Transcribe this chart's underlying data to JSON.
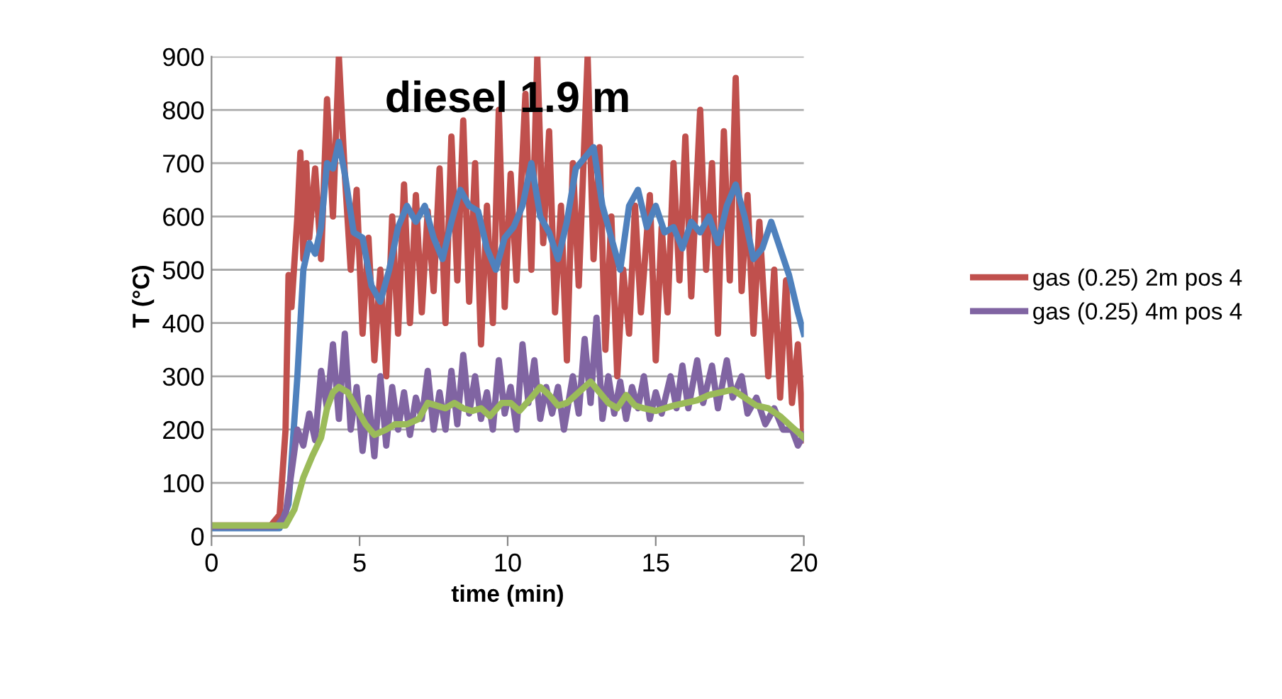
{
  "chart_data": {
    "type": "line",
    "title": "diesel 1.9 m",
    "xlabel": "time (min)",
    "ylabel": "T (°C)",
    "xlim": [
      0,
      20
    ],
    "xticks": [
      0,
      5,
      10,
      15,
      20
    ],
    "ylim": [
      0,
      900
    ],
    "yticks": [
      0,
      100,
      200,
      300,
      400,
      500,
      600,
      700,
      800,
      900
    ],
    "grid": "y",
    "legend": "right",
    "marker": "none",
    "line_style": "solid",
    "series": [
      {
        "name": "gas (0.25) 2m pos 4",
        "color": "#c0504d",
        "x": [
          0,
          2,
          2.3,
          2.5,
          2.6,
          2.7,
          2.9,
          3.0,
          3.1,
          3.2,
          3.3,
          3.5,
          3.7,
          3.9,
          4.1,
          4.3,
          4.5,
          4.7,
          4.9,
          5.1,
          5.3,
          5.5,
          5.7,
          5.9,
          6.1,
          6.3,
          6.5,
          6.7,
          6.9,
          7.1,
          7.3,
          7.5,
          7.7,
          7.9,
          8.1,
          8.3,
          8.5,
          8.7,
          8.9,
          9.1,
          9.3,
          9.5,
          9.7,
          9.9,
          10.1,
          10.3,
          10.6,
          10.8,
          11.0,
          11.2,
          11.4,
          11.6,
          11.8,
          12.0,
          12.2,
          12.4,
          12.7,
          12.9,
          13.1,
          13.3,
          13.5,
          13.7,
          13.9,
          14.1,
          14.3,
          14.5,
          14.8,
          15.0,
          15.2,
          15.4,
          15.6,
          15.8,
          16.0,
          16.2,
          16.5,
          16.7,
          16.9,
          17.1,
          17.3,
          17.5,
          17.7,
          17.9,
          18.1,
          18.3,
          18.5,
          18.8,
          19.0,
          19.2,
          19.4,
          19.6,
          19.8,
          20
        ],
        "values": [
          20,
          20,
          40,
          200,
          490,
          430,
          600,
          720,
          520,
          700,
          560,
          690,
          520,
          820,
          600,
          900,
          680,
          500,
          650,
          380,
          560,
          330,
          500,
          300,
          600,
          380,
          660,
          400,
          640,
          420,
          610,
          460,
          690,
          400,
          750,
          480,
          780,
          440,
          700,
          360,
          620,
          400,
          800,
          430,
          680,
          480,
          830,
          500,
          900,
          550,
          760,
          420,
          620,
          330,
          700,
          470,
          900,
          520,
          730,
          350,
          600,
          300,
          500,
          380,
          620,
          420,
          640,
          330,
          580,
          420,
          700,
          480,
          750,
          450,
          800,
          500,
          700,
          380,
          760,
          480,
          860,
          460,
          640,
          380,
          590,
          300,
          500,
          260,
          480,
          250,
          360,
          180
        ]
      },
      {
        "color": "#4f81bd",
        "x": [
          0,
          2.3,
          2.6,
          2.9,
          3.1,
          3.3,
          3.5,
          3.7,
          3.9,
          4.1,
          4.3,
          4.5,
          4.8,
          5.1,
          5.4,
          5.7,
          6.0,
          6.3,
          6.6,
          6.9,
          7.2,
          7.5,
          7.8,
          8.1,
          8.4,
          8.7,
          9.0,
          9.3,
          9.6,
          9.9,
          10.2,
          10.5,
          10.8,
          11.1,
          11.4,
          11.7,
          12.0,
          12.3,
          12.6,
          12.9,
          13.2,
          13.5,
          13.8,
          14.1,
          14.4,
          14.7,
          15.0,
          15.3,
          15.6,
          15.9,
          16.2,
          16.5,
          16.8,
          17.1,
          17.4,
          17.7,
          18.0,
          18.3,
          18.6,
          18.9,
          19.2,
          19.5,
          19.8,
          20
        ],
        "values": [
          15,
          15,
          60,
          300,
          500,
          550,
          530,
          580,
          700,
          690,
          740,
          680,
          570,
          560,
          470,
          440,
          500,
          580,
          620,
          590,
          620,
          560,
          520,
          590,
          650,
          620,
          610,
          540,
          500,
          560,
          580,
          620,
          700,
          600,
          570,
          520,
          590,
          690,
          710,
          730,
          620,
          560,
          500,
          620,
          650,
          580,
          620,
          570,
          580,
          540,
          590,
          570,
          600,
          550,
          620,
          660,
          600,
          520,
          540,
          590,
          540,
          490,
          420,
          380
        ]
      },
      {
        "name": "gas (0.25) 4m pos 4",
        "color": "#8064a2",
        "x": [
          0,
          2.2,
          2.5,
          2.7,
          2.9,
          3.1,
          3.3,
          3.5,
          3.7,
          3.9,
          4.1,
          4.3,
          4.5,
          4.7,
          4.9,
          5.1,
          5.3,
          5.5,
          5.7,
          5.9,
          6.1,
          6.3,
          6.5,
          6.7,
          6.9,
          7.1,
          7.3,
          7.5,
          7.7,
          7.9,
          8.1,
          8.3,
          8.5,
          8.7,
          8.9,
          9.1,
          9.3,
          9.5,
          9.7,
          9.9,
          10.1,
          10.3,
          10.5,
          10.7,
          10.9,
          11.1,
          11.3,
          11.5,
          11.7,
          11.9,
          12.2,
          12.4,
          12.6,
          12.8,
          13.0,
          13.2,
          13.4,
          13.6,
          13.8,
          14.0,
          14.2,
          14.4,
          14.6,
          14.8,
          15.0,
          15.2,
          15.5,
          15.7,
          15.9,
          16.1,
          16.4,
          16.6,
          16.9,
          17.1,
          17.4,
          17.6,
          17.9,
          18.1,
          18.4,
          18.7,
          19.0,
          19.3,
          19.6,
          19.8,
          20
        ],
        "values": [
          18,
          18,
          40,
          120,
          200,
          170,
          230,
          180,
          310,
          240,
          360,
          220,
          380,
          200,
          280,
          160,
          260,
          150,
          300,
          170,
          280,
          200,
          270,
          190,
          260,
          220,
          310,
          200,
          270,
          200,
          310,
          210,
          340,
          230,
          300,
          220,
          270,
          200,
          330,
          230,
          280,
          200,
          360,
          250,
          330,
          220,
          280,
          230,
          280,
          200,
          300,
          230,
          370,
          250,
          410,
          220,
          300,
          230,
          290,
          220,
          280,
          240,
          300,
          220,
          270,
          230,
          300,
          240,
          320,
          240,
          330,
          250,
          320,
          240,
          330,
          260,
          300,
          230,
          260,
          210,
          240,
          200,
          200,
          170,
          190
        ]
      },
      {
        "color": "#9bbb59",
        "x": [
          0,
          2.5,
          2.8,
          3.1,
          3.4,
          3.7,
          3.9,
          4.1,
          4.3,
          4.6,
          4.9,
          5.2,
          5.5,
          5.9,
          6.2,
          6.6,
          7.0,
          7.3,
          7.6,
          7.9,
          8.2,
          8.5,
          8.8,
          9.1,
          9.4,
          9.8,
          10.1,
          10.4,
          10.8,
          11.1,
          11.4,
          11.7,
          12.0,
          12.4,
          12.8,
          13.1,
          13.4,
          13.7,
          14.0,
          14.3,
          14.6,
          15.0,
          15.3,
          15.6,
          16.0,
          16.4,
          16.8,
          17.2,
          17.6,
          18.0,
          18.4,
          18.8,
          19.2,
          19.6,
          20
        ],
        "values": [
          20,
          20,
          50,
          110,
          150,
          185,
          240,
          270,
          280,
          270,
          240,
          210,
          190,
          200,
          210,
          210,
          220,
          250,
          245,
          240,
          250,
          240,
          235,
          240,
          225,
          250,
          250,
          235,
          260,
          280,
          265,
          245,
          250,
          270,
          290,
          270,
          250,
          240,
          265,
          245,
          240,
          235,
          240,
          245,
          250,
          255,
          265,
          270,
          275,
          260,
          245,
          240,
          225,
          205,
          185
        ]
      }
    ]
  }
}
